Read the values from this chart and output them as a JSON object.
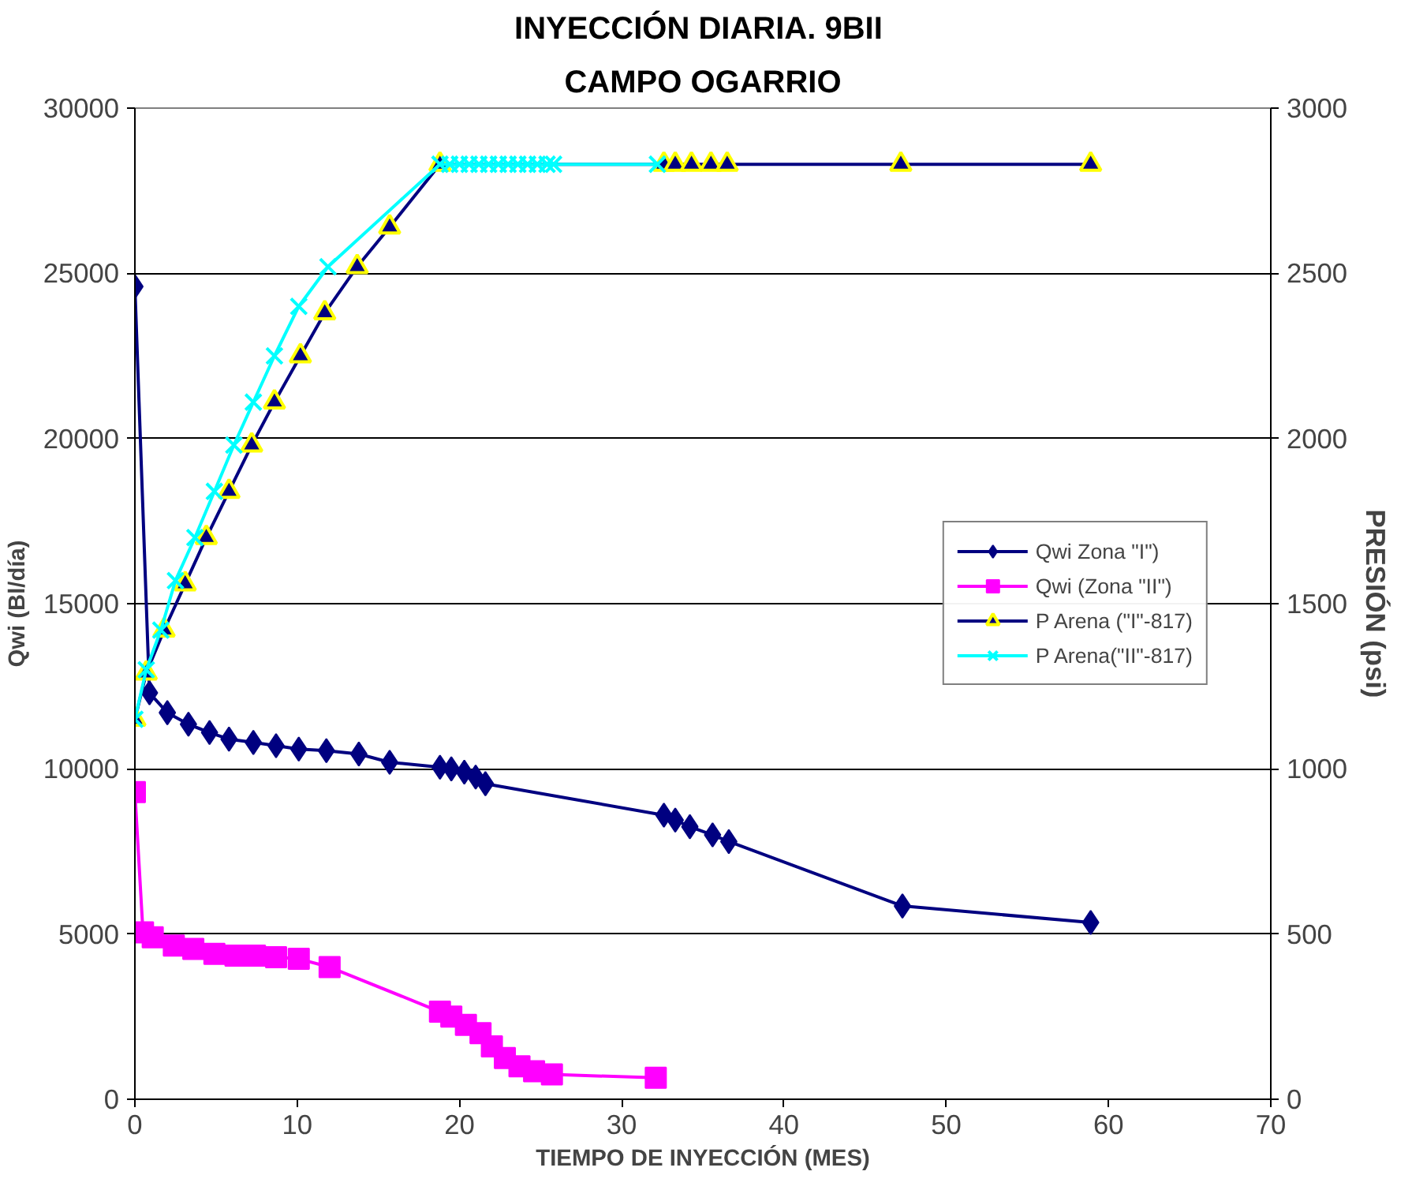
{
  "chart_data": {
    "type": "line",
    "title": "INYECCIÓN DIARIA.  9BII",
    "subtitle": "CAMPO OGARRIO",
    "xlabel": "TIEMPO DE INYECCIÓN (MES)",
    "ylabel": "Qwi (Bl/día)",
    "y2label": "PRESIÓN (psi)",
    "xlim": [
      0,
      70
    ],
    "xticks": [
      0,
      10,
      20,
      30,
      40,
      50,
      60,
      70
    ],
    "ylim": [
      0,
      30000
    ],
    "yticks": [
      0,
      5000,
      10000,
      15000,
      20000,
      25000,
      30000
    ],
    "y2lim": [
      0,
      3000
    ],
    "y2ticks": [
      0,
      500,
      1000,
      1500,
      2000,
      2500,
      3000
    ],
    "grid": "y",
    "legend": "right",
    "line_style": "solid",
    "series": [
      {
        "name": "Qwi Zona \"I\")",
        "color": "#000080",
        "marker": "diamond",
        "x": [
          0,
          0.9,
          2,
          3.3,
          4.6,
          5.8,
          7.3,
          8.7,
          10.1,
          11.8,
          13.8,
          15.7,
          18.8,
          19.5,
          20.3,
          21,
          21.6,
          32.6,
          33.3,
          34.2,
          35.6,
          36.6,
          47.3,
          58.9
        ],
        "values": [
          24600,
          12300,
          11700,
          11350,
          11100,
          10900,
          10800,
          10700,
          10600,
          10550,
          10450,
          10200,
          10050,
          10000,
          9900,
          9750,
          9550,
          8600,
          8450,
          8250,
          8000,
          7800,
          5850,
          5350
        ]
      },
      {
        "name": "Qwi (Zona \"II\")",
        "color": "#ff00ff",
        "marker": "square",
        "x": [
          0,
          0.5,
          1.1,
          2.4,
          3.6,
          4.9,
          6.2,
          7.4,
          8.7,
          10.1,
          12,
          18.8,
          19.5,
          20.4,
          21.3,
          22,
          22.8,
          23.7,
          24.6,
          25.7,
          32.1
        ],
        "values": [
          9300,
          5050,
          4900,
          4650,
          4550,
          4400,
          4350,
          4350,
          4300,
          4250,
          4000,
          2650,
          2500,
          2250,
          2000,
          1600,
          1250,
          1000,
          850,
          750,
          650
        ]
      },
      {
        "name": "P Arena (\"I\"-817)",
        "color": "#000080",
        "marker": "triangle",
        "axis": "y2",
        "x": [
          0,
          0.7,
          1.8,
          3.1,
          4.4,
          5.8,
          7.2,
          8.6,
          10.2,
          11.7,
          13.7,
          15.7,
          18.8,
          32.6,
          33.3,
          34.3,
          35.5,
          36.5,
          47.2,
          58.9
        ],
        "values": [
          1150,
          1290,
          1420,
          1560,
          1700,
          1840,
          1980,
          2110,
          2250,
          2380,
          2520,
          2640,
          2830,
          2830,
          2830,
          2830,
          2830,
          2830,
          2830,
          2830
        ]
      },
      {
        "name": "P Arena(\"II\"-817)",
        "color": "#00ffff",
        "marker": "cross",
        "axis": "y2",
        "x": [
          0,
          0.7,
          1.6,
          2.5,
          3.7,
          4.9,
          6.1,
          7.3,
          8.6,
          10.1,
          11.9,
          18.8,
          19.4,
          20,
          20.6,
          21.2,
          21.8,
          22.4,
          23,
          23.6,
          24.2,
          24.8,
          25.4,
          25.8,
          32.2
        ],
        "values": [
          1150,
          1300,
          1420,
          1570,
          1700,
          1840,
          1980,
          2110,
          2250,
          2400,
          2520,
          2830,
          2830,
          2830,
          2830,
          2830,
          2830,
          2830,
          2830,
          2830,
          2830,
          2830,
          2830,
          2830,
          2830
        ]
      }
    ]
  }
}
